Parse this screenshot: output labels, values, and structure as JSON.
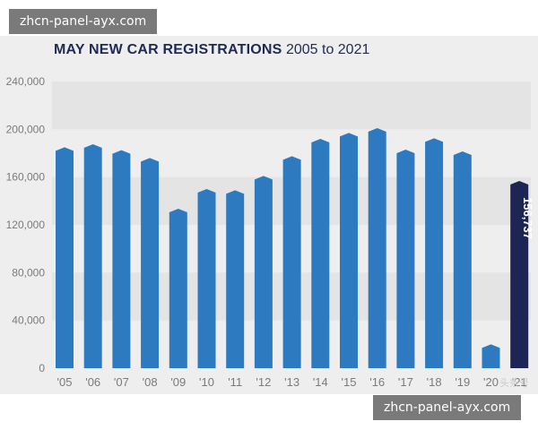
{
  "chart_data": {
    "type": "bar",
    "title": "MAY NEW CAR REGISTRATIONS",
    "subtitle": "2005 to 2021",
    "categories": [
      "'05",
      "'06",
      "'07",
      "'08",
      "'09",
      "'10",
      "'11",
      "'12",
      "'13",
      "'14",
      "'15",
      "'16",
      "'17",
      "'18",
      "'19",
      "'20",
      "'21"
    ],
    "values": [
      185000,
      187500,
      182500,
      176000,
      133500,
      150000,
      149000,
      161000,
      177500,
      192000,
      197000,
      201000,
      183000,
      192500,
      181500,
      20000,
      156737
    ],
    "highlight_index": 16,
    "highlight_label": "156,737",
    "ylim": [
      0,
      240000
    ],
    "yticks": [
      "0",
      "40,000",
      "80,000",
      "120,000",
      "160,000",
      "200,000",
      "240,000"
    ],
    "ytick_values": [
      0,
      40000,
      80000,
      120000,
      160000,
      200000,
      240000
    ],
    "xlabel": "",
    "ylabel": "",
    "grid": true,
    "colors": {
      "bar": "#2e7ac0",
      "bar_light": "#5b9ad6",
      "highlight": "#1c2554",
      "band": "#e4e4e4",
      "axis_text": "#7a7a7a"
    }
  },
  "watermarks": {
    "top": "zhcn-panel-ayx.com",
    "bottom": "zhcn-panel-ayx.com"
  },
  "credit": "头条号"
}
